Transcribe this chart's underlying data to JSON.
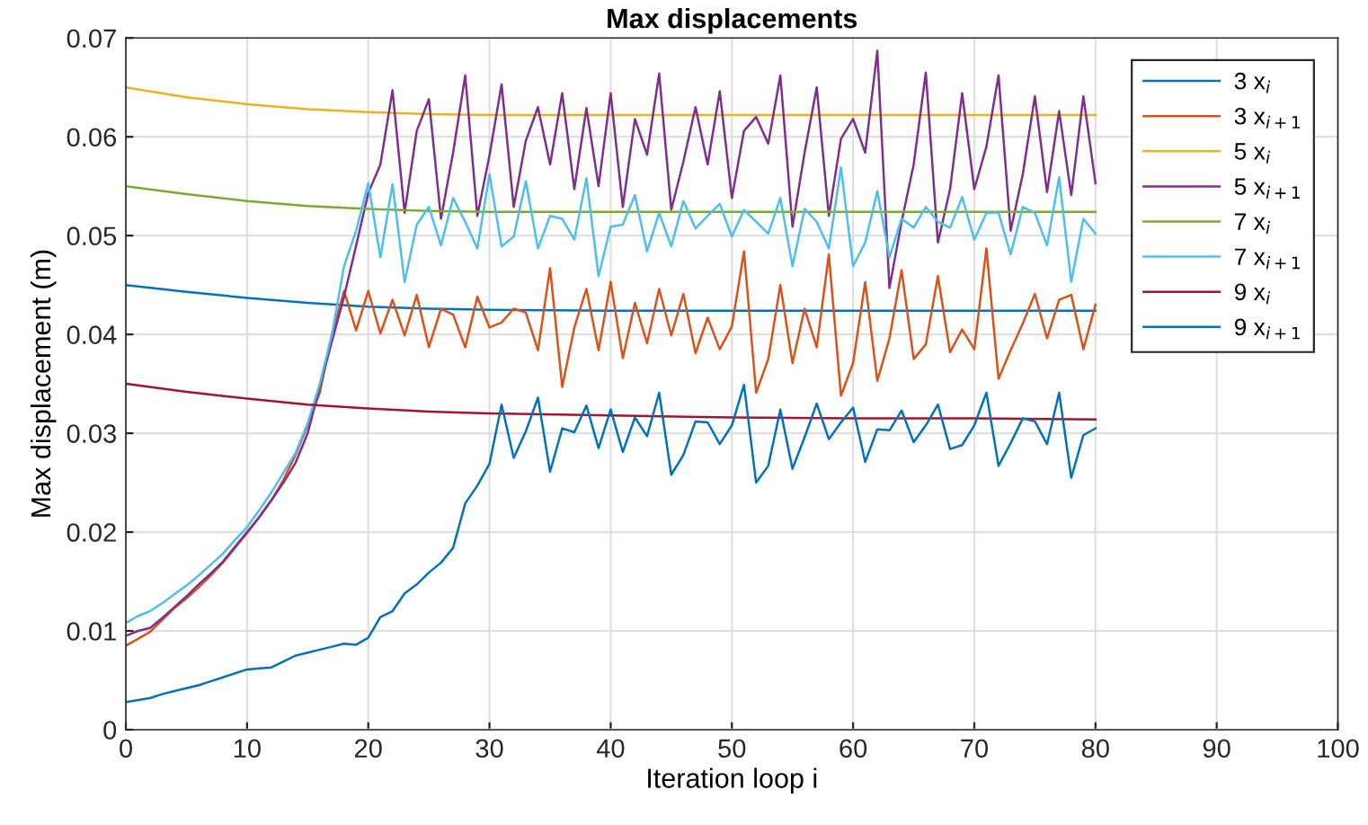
{
  "chart_data": {
    "type": "line",
    "title": "Max displacements",
    "xlabel": "Iteration loop i",
    "ylabel": "Max displacement (m)",
    "xlim": [
      0,
      100
    ],
    "xticks": [
      0,
      10,
      20,
      30,
      40,
      50,
      60,
      70,
      80,
      90,
      100
    ],
    "ylim": [
      0,
      0.07
    ],
    "yticks": [
      0,
      0.01,
      0.02,
      0.03,
      0.04,
      0.05,
      0.06,
      0.07
    ],
    "grid": true,
    "legend": "top right",
    "marker": "none",
    "line_style": "solid",
    "series": [
      {
        "name": "3 x$_{i}$",
        "color": "#0072bd",
        "x": [
          0,
          5,
          10,
          15,
          20,
          25,
          30,
          40,
          50,
          60,
          70,
          80
        ],
        "values": [
          0.045,
          0.0443,
          0.0437,
          0.0432,
          0.0428,
          0.0426,
          0.0425,
          0.0424,
          0.0424,
          0.0424,
          0.0424,
          0.0424
        ]
      },
      {
        "name": "3 x$_{i+1}$",
        "color": "#d95319",
        "x": [
          0,
          1,
          2,
          3,
          4,
          5,
          6,
          7,
          8,
          9,
          10,
          11,
          12,
          13,
          14,
          15,
          16,
          17,
          18,
          19,
          20,
          21,
          22,
          23,
          24,
          25,
          26,
          27,
          28,
          29,
          30,
          31,
          32,
          33,
          34,
          35,
          36,
          37,
          38,
          39,
          40,
          41,
          42,
          43,
          44,
          45,
          46,
          47,
          48,
          49,
          50,
          51,
          52,
          53,
          54,
          55,
          56,
          57,
          58,
          59,
          60,
          61,
          62,
          63,
          64,
          65,
          66,
          67,
          68,
          69,
          70,
          71,
          72,
          73,
          74,
          75,
          76,
          77,
          78,
          79,
          80
        ],
        "values": [
          0.0085,
          0.0092,
          0.0099,
          0.0111,
          0.0123,
          0.0133,
          0.0144,
          0.0156,
          0.0169,
          0.0184,
          0.0199,
          0.0215,
          0.0232,
          0.0253,
          0.0278,
          0.0308,
          0.0341,
          0.04,
          0.0444,
          0.0404,
          0.0444,
          0.0401,
          0.0435,
          0.0399,
          0.044,
          0.0387,
          0.0426,
          0.042,
          0.0387,
          0.0438,
          0.0407,
          0.0412,
          0.0426,
          0.0422,
          0.0384,
          0.0467,
          0.0347,
          0.0407,
          0.0446,
          0.0384,
          0.0453,
          0.0376,
          0.0432,
          0.0391,
          0.0446,
          0.0399,
          0.0441,
          0.0381,
          0.0417,
          0.0385,
          0.0408,
          0.0484,
          0.0341,
          0.0375,
          0.045,
          0.0371,
          0.0426,
          0.0387,
          0.0481,
          0.0338,
          0.0371,
          0.0453,
          0.0353,
          0.0396,
          0.0465,
          0.0375,
          0.039,
          0.0459,
          0.0382,
          0.0405,
          0.0385,
          0.0487,
          0.0355,
          0.0384,
          0.0411,
          0.0441,
          0.0396,
          0.0435,
          0.044,
          0.0385,
          0.043
        ]
      },
      {
        "name": "5 x$_{i}$",
        "color": "#edb120",
        "x": [
          0,
          5,
          10,
          15,
          20,
          25,
          30,
          40,
          50,
          60,
          70,
          80
        ],
        "values": [
          0.065,
          0.064,
          0.0633,
          0.0628,
          0.0625,
          0.0623,
          0.0622,
          0.0622,
          0.0622,
          0.0622,
          0.0622,
          0.0622
        ]
      },
      {
        "name": "5 x$_{i+1}$",
        "color": "#7e2f8e",
        "x": [
          0,
          1,
          2,
          3,
          4,
          5,
          6,
          7,
          8,
          9,
          10,
          11,
          12,
          13,
          14,
          15,
          16,
          17,
          18,
          19,
          20,
          21,
          22,
          23,
          24,
          25,
          26,
          27,
          28,
          29,
          30,
          31,
          32,
          33,
          34,
          35,
          36,
          37,
          38,
          39,
          40,
          41,
          42,
          43,
          44,
          45,
          46,
          47,
          48,
          49,
          50,
          51,
          52,
          53,
          54,
          55,
          56,
          57,
          58,
          59,
          60,
          61,
          62,
          63,
          64,
          65,
          66,
          67,
          68,
          69,
          70,
          71,
          72,
          73,
          74,
          75,
          76,
          77,
          78,
          79,
          80
        ],
        "values": [
          0.0095,
          0.01,
          0.0103,
          0.0113,
          0.0124,
          0.0135,
          0.0147,
          0.0158,
          0.017,
          0.0185,
          0.02,
          0.0215,
          0.0232,
          0.025,
          0.027,
          0.03,
          0.0347,
          0.0393,
          0.0438,
          0.049,
          0.0543,
          0.0572,
          0.0647,
          0.0523,
          0.0606,
          0.0638,
          0.0517,
          0.0584,
          0.0662,
          0.052,
          0.0581,
          0.0653,
          0.0529,
          0.0596,
          0.063,
          0.0572,
          0.0644,
          0.0547,
          0.0629,
          0.055,
          0.0644,
          0.0529,
          0.0618,
          0.0582,
          0.0664,
          0.0526,
          0.0575,
          0.063,
          0.0572,
          0.0646,
          0.0538,
          0.0606,
          0.062,
          0.0593,
          0.0662,
          0.0509,
          0.0584,
          0.065,
          0.052,
          0.0598,
          0.0618,
          0.0584,
          0.0687,
          0.0447,
          0.0514,
          0.0572,
          0.0665,
          0.0493,
          0.0547,
          0.0644,
          0.0547,
          0.059,
          0.0662,
          0.0505,
          0.0562,
          0.0641,
          0.0544,
          0.0626,
          0.0541,
          0.0641,
          0.0553
        ]
      },
      {
        "name": "7 x$_{i}$",
        "color": "#77ac30",
        "x": [
          0,
          5,
          10,
          15,
          20,
          25,
          30,
          40,
          50,
          60,
          70,
          80
        ],
        "values": [
          0.055,
          0.0542,
          0.0535,
          0.053,
          0.0527,
          0.0525,
          0.0524,
          0.0524,
          0.0524,
          0.0524,
          0.0524,
          0.0524
        ]
      },
      {
        "name": "7 x$_{i+1}$",
        "color": "#4dbeee",
        "x": [
          0,
          1,
          2,
          3,
          4,
          5,
          6,
          7,
          8,
          9,
          10,
          11,
          12,
          13,
          14,
          15,
          16,
          17,
          18,
          19,
          20,
          21,
          22,
          23,
          24,
          25,
          26,
          27,
          28,
          29,
          30,
          31,
          32,
          33,
          34,
          35,
          36,
          37,
          38,
          39,
          40,
          41,
          42,
          43,
          44,
          45,
          46,
          47,
          48,
          49,
          50,
          51,
          52,
          53,
          54,
          55,
          56,
          57,
          58,
          59,
          60,
          61,
          62,
          63,
          64,
          65,
          66,
          67,
          68,
          69,
          70,
          71,
          72,
          73,
          74,
          75,
          76,
          77,
          78,
          79,
          80
        ],
        "values": [
          0.0108,
          0.0115,
          0.012,
          0.0128,
          0.0137,
          0.0146,
          0.0156,
          0.0167,
          0.0178,
          0.0192,
          0.0205,
          0.0222,
          0.024,
          0.026,
          0.028,
          0.031,
          0.035,
          0.04,
          0.0469,
          0.0505,
          0.0553,
          0.0478,
          0.0552,
          0.0453,
          0.0511,
          0.0529,
          0.049,
          0.0538,
          0.0514,
          0.0487,
          0.0562,
          0.0489,
          0.0499,
          0.0555,
          0.0487,
          0.052,
          0.0517,
          0.0496,
          0.0558,
          0.0459,
          0.0509,
          0.0511,
          0.0541,
          0.0484,
          0.0523,
          0.0489,
          0.0535,
          0.0507,
          0.052,
          0.0532,
          0.0499,
          0.0526,
          0.0514,
          0.0502,
          0.0538,
          0.0469,
          0.0527,
          0.0514,
          0.0487,
          0.0569,
          0.0469,
          0.0493,
          0.0545,
          0.0478,
          0.0517,
          0.0508,
          0.0529,
          0.0514,
          0.0508,
          0.0539,
          0.0496,
          0.0523,
          0.0523,
          0.0481,
          0.0529,
          0.0523,
          0.049,
          0.0559,
          0.0453,
          0.0517,
          0.0502
        ]
      },
      {
        "name": "9 x$_{i}$",
        "color": "#a2142f",
        "x": [
          0,
          5,
          10,
          15,
          20,
          25,
          30,
          40,
          50,
          60,
          70,
          80
        ],
        "values": [
          0.035,
          0.0342,
          0.0335,
          0.0329,
          0.0325,
          0.0322,
          0.032,
          0.0318,
          0.0316,
          0.0315,
          0.0315,
          0.0314
        ]
      },
      {
        "name": "9 x$_{i+1}$",
        "color": "#0072bd",
        "x": [
          0,
          1,
          2,
          3,
          4,
          5,
          6,
          7,
          8,
          9,
          10,
          11,
          12,
          13,
          14,
          15,
          16,
          17,
          18,
          19,
          20,
          21,
          22,
          23,
          24,
          25,
          26,
          27,
          28,
          29,
          30,
          31,
          32,
          33,
          34,
          35,
          36,
          37,
          38,
          39,
          40,
          41,
          42,
          43,
          44,
          45,
          46,
          47,
          48,
          49,
          50,
          51,
          52,
          53,
          54,
          55,
          56,
          57,
          58,
          59,
          60,
          61,
          62,
          63,
          64,
          65,
          66,
          67,
          68,
          69,
          70,
          71,
          72,
          73,
          74,
          75,
          76,
          77,
          78,
          79,
          80
        ],
        "values": [
          0.0028,
          0.003,
          0.0032,
          0.0036,
          0.0039,
          0.0042,
          0.0045,
          0.0049,
          0.0053,
          0.0057,
          0.0061,
          0.0062,
          0.0063,
          0.0069,
          0.0075,
          0.0078,
          0.0081,
          0.0084,
          0.0087,
          0.0086,
          0.0093,
          0.0114,
          0.012,
          0.0138,
          0.0147,
          0.0159,
          0.0169,
          0.0184,
          0.0229,
          0.0247,
          0.0269,
          0.0329,
          0.0275,
          0.0302,
          0.0336,
          0.0261,
          0.0305,
          0.0301,
          0.0328,
          0.0285,
          0.0324,
          0.0281,
          0.0316,
          0.0297,
          0.0341,
          0.0258,
          0.0278,
          0.0312,
          0.0311,
          0.0289,
          0.0308,
          0.0349,
          0.025,
          0.0267,
          0.0324,
          0.0264,
          0.0296,
          0.033,
          0.0294,
          0.0311,
          0.0326,
          0.0271,
          0.0304,
          0.0303,
          0.0323,
          0.0291,
          0.0308,
          0.0329,
          0.0284,
          0.0288,
          0.0308,
          0.0341,
          0.0267,
          0.029,
          0.0315,
          0.0312,
          0.0289,
          0.0341,
          0.0255,
          0.0298,
          0.0305
        ]
      }
    ]
  }
}
